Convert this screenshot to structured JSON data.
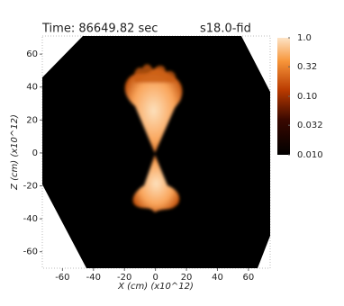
{
  "chart_data": {
    "type": "image",
    "title": "Time: 86649.82 sec",
    "subtitle": "s18.0-fid",
    "x_label": "X (cm) (x10^12)",
    "y_label": "Z (cm) (x10^12)",
    "xlim": [
      -73,
      74
    ],
    "xticks": [
      -60,
      -40,
      -20,
      0,
      20,
      40,
      60
    ],
    "ylim": [
      -70,
      71
    ],
    "yticks": [
      -60,
      -40,
      -20,
      0,
      20,
      40,
      60
    ],
    "colorbar": {
      "log": true,
      "lim": [
        0.01,
        1
      ],
      "ticks": [
        {
          "value": 1,
          "label": "1.0"
        },
        0.32,
        {
          "value": 0.1,
          "label": "0.10"
        },
        0.032,
        {
          "value": 0.01,
          "label": "0.010"
        }
      ]
    }
  }
}
